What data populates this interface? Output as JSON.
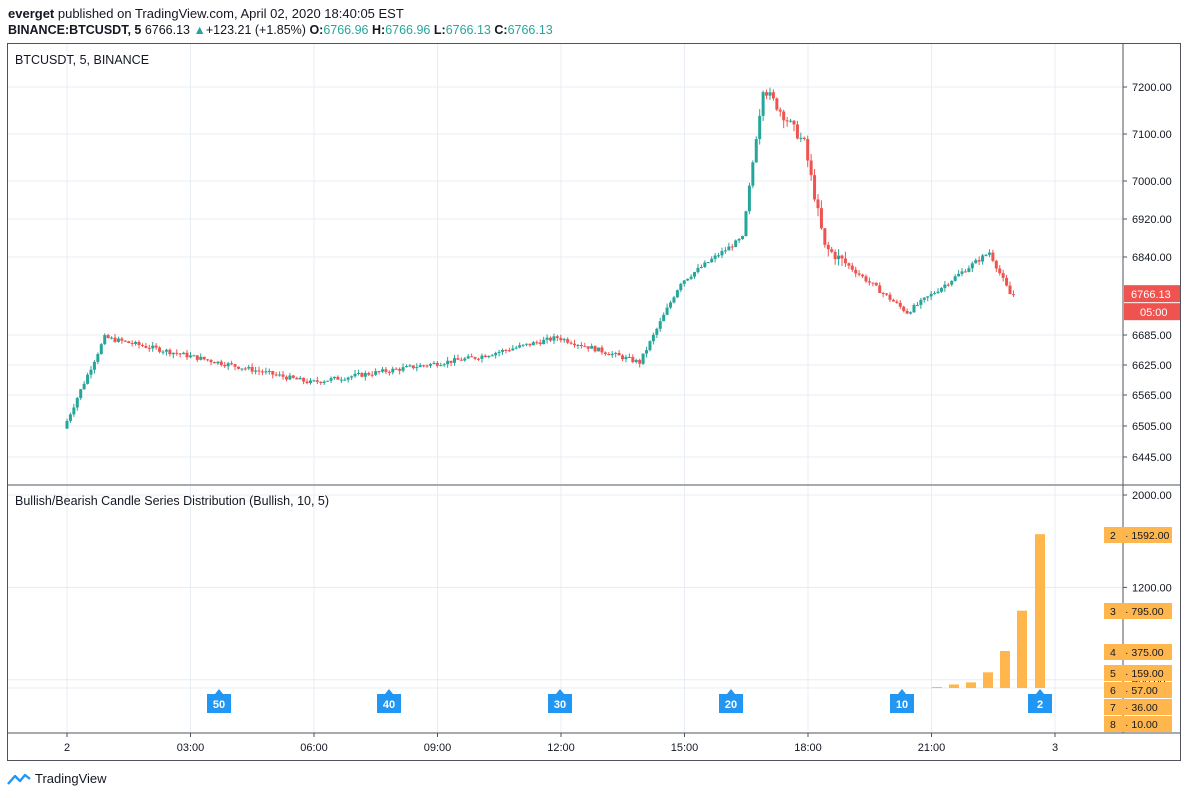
{
  "header": {
    "author": "everget",
    "published": " published on TradingView.com, April 02, 2020 18:40:05 EST",
    "symbol": "BINANCE:BTCUSDT, 5",
    "last": "6766.13",
    "change": "+123.21 (+1.85%)",
    "o_label": "O:",
    "o": "6766.96",
    "h_label": "H:",
    "h": "6766.96",
    "l_label": "L:",
    "l": "6766.13",
    "c_label": "C:",
    "c": "6766.13"
  },
  "price_pane": {
    "label": "BTCUSDT, 5, BINANCE",
    "price_tag": "6766.13",
    "countdown": "05:00"
  },
  "indicator_pane": {
    "label": "Bullish/Bearish Candle Series Distribution (Bullish, 10, 5)"
  },
  "footer": {
    "brand": "TradingView"
  },
  "colors": {
    "up": "#26a69a",
    "down": "#ef5350",
    "bar": "#ffb74d",
    "marker": "#2196f3",
    "grid": "#e8ecf3"
  },
  "chart_data": [
    {
      "type": "candlestick",
      "title": "BTCUSDT, 5, BINANCE",
      "y_ticks": [
        6445,
        6505,
        6565,
        6625,
        6685,
        6766.13,
        6840,
        6920,
        7000,
        7100,
        7200
      ],
      "y_tick_labels": [
        "6445.00",
        "6505.00",
        "6565.00",
        "6625.00",
        "6685.00",
        "6766.13",
        "6840.00",
        "6920.00",
        "7000.00",
        "7100.00",
        "7200.00"
      ],
      "x_ticks": [
        "2",
        "03:00",
        "06:00",
        "09:00",
        "12:00",
        "15:00",
        "18:00",
        "21:00",
        "3"
      ],
      "key_points": [
        {
          "time": "00:00",
          "price": 6500
        },
        {
          "time": "01:00",
          "price": 6680
        },
        {
          "time": "06:00",
          "price": 6590
        },
        {
          "time": "10:00",
          "price": 6640
        },
        {
          "time": "12:00",
          "price": 6680
        },
        {
          "time": "14:00",
          "price": 6630
        },
        {
          "time": "15:00",
          "price": 6790
        },
        {
          "time": "16:30",
          "price": 6880
        },
        {
          "time": "17:00",
          "price": 7200
        },
        {
          "time": "18:00",
          "price": 7080
        },
        {
          "time": "18:30",
          "price": 6860
        },
        {
          "time": "20:30",
          "price": 6730
        },
        {
          "time": "22:30",
          "price": 6850
        },
        {
          "time": "23:00",
          "price": 6766.13
        }
      ],
      "last_price": 6766.13
    },
    {
      "type": "bar",
      "title": "Bullish/Bearish Candle Series Distribution (Bullish, 10, 5)",
      "series_lengths": [
        "8",
        "7",
        "6",
        "5",
        "4",
        "3",
        "2"
      ],
      "values": [
        10,
        36,
        57,
        159,
        375,
        795,
        1592
      ],
      "value_labels": [
        "10.00",
        "36.00",
        "57.00",
        "159.00",
        "375.00",
        "795.00",
        "1592.00"
      ],
      "y_ticks": [
        400,
        1200,
        2000
      ],
      "y_tick_labels": [
        "400.00",
        "1200.00",
        "2000.00"
      ],
      "ylim": [
        0,
        2000
      ],
      "markers": [
        "50",
        "40",
        "30",
        "20",
        "10",
        "2"
      ]
    }
  ]
}
